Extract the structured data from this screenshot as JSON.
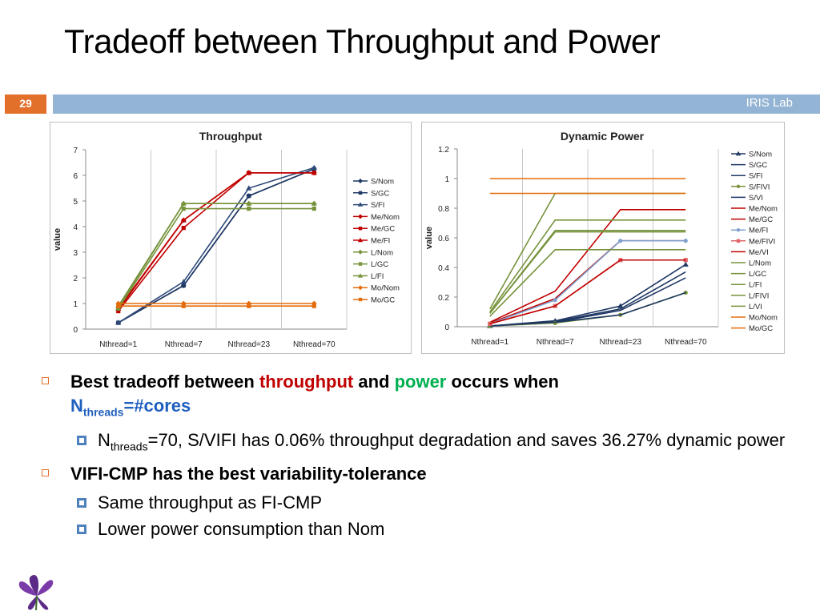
{
  "slide": {
    "title": "Tradeoff between Throughput and Power",
    "number": "29",
    "lab": "IRIS Lab"
  },
  "bullets": {
    "b1_pre": "Best tradeoff between ",
    "b1_red": "throughput",
    "b1_mid": " and ",
    "b1_green": "power",
    "b1_post": " occurs when",
    "b1_n": "N",
    "b1_sub": "threads",
    "b1_eq": "=#cores",
    "s1_n": "N",
    "s1_sub": "threads",
    "s1_text": "=70, S/VIFI has 0.06% throughput degradation and saves 36.27% dynamic power",
    "b2": "VIFI-CMP has the best variability-tolerance",
    "s2": "Same throughput as FI-CMP",
    "s3": "Lower power consumption than Nom"
  },
  "chart_data": [
    {
      "type": "line",
      "title": "Throughput",
      "ylabel": "value",
      "categories": [
        "Nthread=1",
        "Nthread=7",
        "Nthread=23",
        "Nthread=70"
      ],
      "ylim": [
        0,
        7
      ],
      "yticks": [
        "0",
        "1",
        "2",
        "3",
        "4",
        "5",
        "6",
        "7"
      ],
      "legend": "right",
      "grid": "vertical",
      "series": [
        {
          "name": "S/Nom",
          "color": "#1f3864",
          "marker": "diamond",
          "values": [
            0.25,
            1.7,
            5.2,
            6.25
          ]
        },
        {
          "name": "S/GC",
          "color": "#1f3864",
          "marker": "square",
          "values": [
            0.25,
            1.7,
            5.2,
            6.25
          ]
        },
        {
          "name": "S/FI",
          "color": "#2e4a7a",
          "marker": "triangle",
          "values": [
            0.25,
            1.85,
            5.5,
            6.3
          ]
        },
        {
          "name": "Me/Nom",
          "color": "#c00000",
          "marker": "diamond",
          "values": [
            0.75,
            4.25,
            6.1,
            6.1
          ]
        },
        {
          "name": "Me/GC",
          "color": "#c00000",
          "marker": "square",
          "values": [
            0.7,
            3.95,
            6.1,
            6.1
          ]
        },
        {
          "name": "Me/FI",
          "color": "#c00000",
          "marker": "triangle",
          "values": [
            0.8,
            4.25,
            6.1,
            6.1
          ]
        },
        {
          "name": "L/Nom",
          "color": "#77933c",
          "marker": "diamond",
          "values": [
            0.85,
            4.9,
            4.9,
            4.9
          ]
        },
        {
          "name": "L/GC",
          "color": "#77933c",
          "marker": "square",
          "values": [
            0.8,
            4.7,
            4.7,
            4.7
          ]
        },
        {
          "name": "L/FI",
          "color": "#77933c",
          "marker": "triangle",
          "values": [
            0.9,
            4.9,
            4.9,
            4.9
          ]
        },
        {
          "name": "Mo/Nom",
          "color": "#e46c0a",
          "marker": "diamond",
          "values": [
            1.0,
            1.0,
            1.0,
            1.0
          ]
        },
        {
          "name": "Mo/GC",
          "color": "#e46c0a",
          "marker": "square",
          "values": [
            0.9,
            0.9,
            0.9,
            0.9
          ]
        }
      ]
    },
    {
      "type": "line",
      "title": "Dynamic Power",
      "ylabel": "value",
      "categories": [
        "Nthread=1",
        "Nthread=7",
        "Nthread=23",
        "Nthread=70"
      ],
      "ylim": [
        0,
        1.2
      ],
      "yticks": [
        "0",
        "0.2",
        "0.4",
        "0.6",
        "0.8",
        "1",
        "1.2"
      ],
      "legend": "right",
      "grid": "vertical",
      "series": [
        {
          "name": "S/Nom",
          "color": "#1f3864",
          "marker": "triangle",
          "values": [
            0.005,
            0.04,
            0.14,
            0.42
          ]
        },
        {
          "name": "S/GC",
          "color": "#1f3864",
          "marker": "none",
          "values": [
            0.005,
            0.03,
            0.11,
            0.33
          ]
        },
        {
          "name": "S/FI",
          "color": "#1f3864",
          "marker": "none",
          "values": [
            0.005,
            0.035,
            0.12,
            0.37
          ]
        },
        {
          "name": "S/FIVI",
          "color": "#77933c",
          "marker": "dot",
          "values": [
            0.005,
            0.025,
            0.08,
            0.23
          ]
        },
        {
          "name": "S/VI",
          "color": "#1f3864",
          "marker": "none",
          "values": [
            0.005,
            0.03,
            0.08,
            0.23
          ]
        },
        {
          "name": "Me/Nom",
          "color": "#c00000",
          "marker": "none",
          "values": [
            0.03,
            0.24,
            0.79,
            0.79
          ]
        },
        {
          "name": "Me/GC",
          "color": "#c00000",
          "marker": "none",
          "values": [
            0.025,
            0.19,
            0.58,
            0.58
          ]
        },
        {
          "name": "Me/FI",
          "color": "#7f9fce",
          "marker": "dot",
          "values": [
            0.02,
            0.18,
            0.58,
            0.58
          ]
        },
        {
          "name": "Me/FIVI",
          "color": "#e06666",
          "marker": "square",
          "values": [
            0.02,
            0.14,
            0.45,
            0.45
          ]
        },
        {
          "name": "Me/VI",
          "color": "#c00000",
          "marker": "none",
          "values": [
            0.02,
            0.14,
            0.45,
            0.45
          ]
        },
        {
          "name": "L/Nom",
          "color": "#77933c",
          "marker": "none",
          "values": [
            0.1,
            0.72,
            0.72,
            0.72
          ]
        },
        {
          "name": "L/GC",
          "color": "#77933c",
          "marker": "none",
          "values": [
            0.09,
            0.65,
            0.65,
            0.65
          ]
        },
        {
          "name": "L/FI",
          "color": "#77933c",
          "marker": "none",
          "values": [
            0.12,
            0.9,
            0.9,
            0.9
          ]
        },
        {
          "name": "L/FIVI",
          "color": "#77933c",
          "marker": "none",
          "values": [
            0.09,
            0.64,
            0.64,
            0.64
          ]
        },
        {
          "name": "L/VI",
          "color": "#77933c",
          "marker": "none",
          "values": [
            0.07,
            0.52,
            0.52,
            0.52
          ]
        },
        {
          "name": "Mo/Nom",
          "color": "#e46c0a",
          "marker": "none",
          "values": [
            1.0,
            1.0,
            1.0,
            1.0
          ]
        },
        {
          "name": "Mo/GC",
          "color": "#e46c0a",
          "marker": "none",
          "values": [
            0.9,
            0.9,
            0.9,
            0.9
          ]
        }
      ]
    }
  ]
}
